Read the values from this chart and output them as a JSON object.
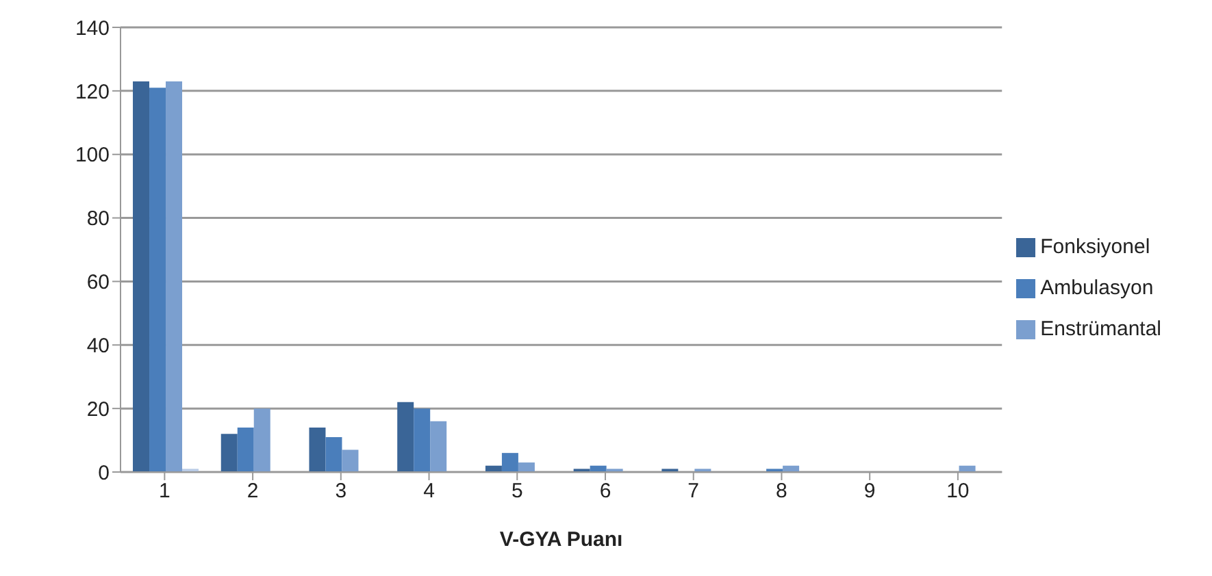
{
  "chart_data": {
    "type": "bar",
    "xlabel": "V-GYA Puanı",
    "categories": [
      "1",
      "2",
      "3",
      "4",
      "5",
      "6",
      "7",
      "8",
      "9",
      "10"
    ],
    "series": [
      {
        "name": "Fonksiyonel",
        "color": "#3a6597",
        "values": [
          123,
          12,
          14,
          22,
          2,
          1,
          1,
          0,
          0,
          0
        ]
      },
      {
        "name": "Ambulasyon",
        "color": "#4a7ebb",
        "values": [
          121,
          14,
          11,
          20,
          6,
          2,
          0,
          1,
          0,
          0
        ]
      },
      {
        "name": "Enstrümantal",
        "color": "#7b9fcf",
        "values": [
          123,
          20,
          7,
          16,
          3,
          1,
          1,
          2,
          0,
          2
        ]
      },
      {
        "color": "#b9cbe6",
        "values": [
          1,
          0,
          0,
          0,
          0,
          0,
          0,
          0,
          0,
          0
        ]
      }
    ],
    "ylim": [
      0,
      140
    ],
    "yticks": [
      0,
      20,
      40,
      60,
      80,
      100,
      120,
      140
    ],
    "grid": "y",
    "legend": "right"
  }
}
